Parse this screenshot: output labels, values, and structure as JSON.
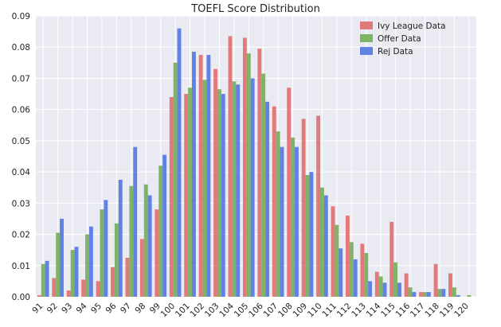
{
  "chart_data": {
    "type": "bar",
    "title": "TOEFL Score Distribution",
    "xlabel": "",
    "ylabel": "",
    "ylim": [
      0,
      0.09
    ],
    "yticks": [
      "0.00",
      "0.01",
      "0.02",
      "0.03",
      "0.04",
      "0.05",
      "0.06",
      "0.07",
      "0.08",
      "0.09"
    ],
    "grid": true,
    "legend_position": "top-right",
    "categories": [
      "91",
      "92",
      "93",
      "94",
      "95",
      "96",
      "97",
      "98",
      "99",
      "100",
      "101",
      "102",
      "103",
      "104",
      "105",
      "106",
      "107",
      "108",
      "109",
      "110",
      "111",
      "112",
      "113",
      "114",
      "115",
      "116",
      "117",
      "118",
      "119",
      "120"
    ],
    "series": [
      {
        "name": "Ivy League Data",
        "color": "#e06666",
        "values": [
          0.0005,
          0.006,
          0.002,
          0.0055,
          0.005,
          0.0095,
          0.0125,
          0.0185,
          0.028,
          0.064,
          0.065,
          0.0775,
          0.073,
          0.0835,
          0.083,
          0.0795,
          0.061,
          0.067,
          0.057,
          0.058,
          0.029,
          0.026,
          0.017,
          0.008,
          0.024,
          0.0075,
          0.0015,
          0.0105,
          0.0075,
          0.0
        ]
      },
      {
        "name": "Offer Data",
        "color": "#6aa84f",
        "values": [
          0.0105,
          0.0205,
          0.015,
          0.02,
          0.028,
          0.0235,
          0.0355,
          0.036,
          0.042,
          0.075,
          0.067,
          0.0695,
          0.0665,
          0.069,
          0.078,
          0.0715,
          0.053,
          0.051,
          0.039,
          0.035,
          0.023,
          0.0175,
          0.014,
          0.0065,
          0.011,
          0.003,
          0.0015,
          0.0025,
          0.003,
          0.0005
        ]
      },
      {
        "name": "Rej Data",
        "color": "#4a6fe3",
        "values": [
          0.0115,
          0.025,
          0.016,
          0.0225,
          0.031,
          0.0375,
          0.048,
          0.0325,
          0.0455,
          0.086,
          0.0785,
          0.0775,
          0.065,
          0.068,
          0.07,
          0.0625,
          0.048,
          0.048,
          0.04,
          0.0325,
          0.0155,
          0.012,
          0.005,
          0.0045,
          0.0045,
          0.0015,
          0.0015,
          0.0025,
          0.0005,
          0.0
        ]
      }
    ]
  }
}
